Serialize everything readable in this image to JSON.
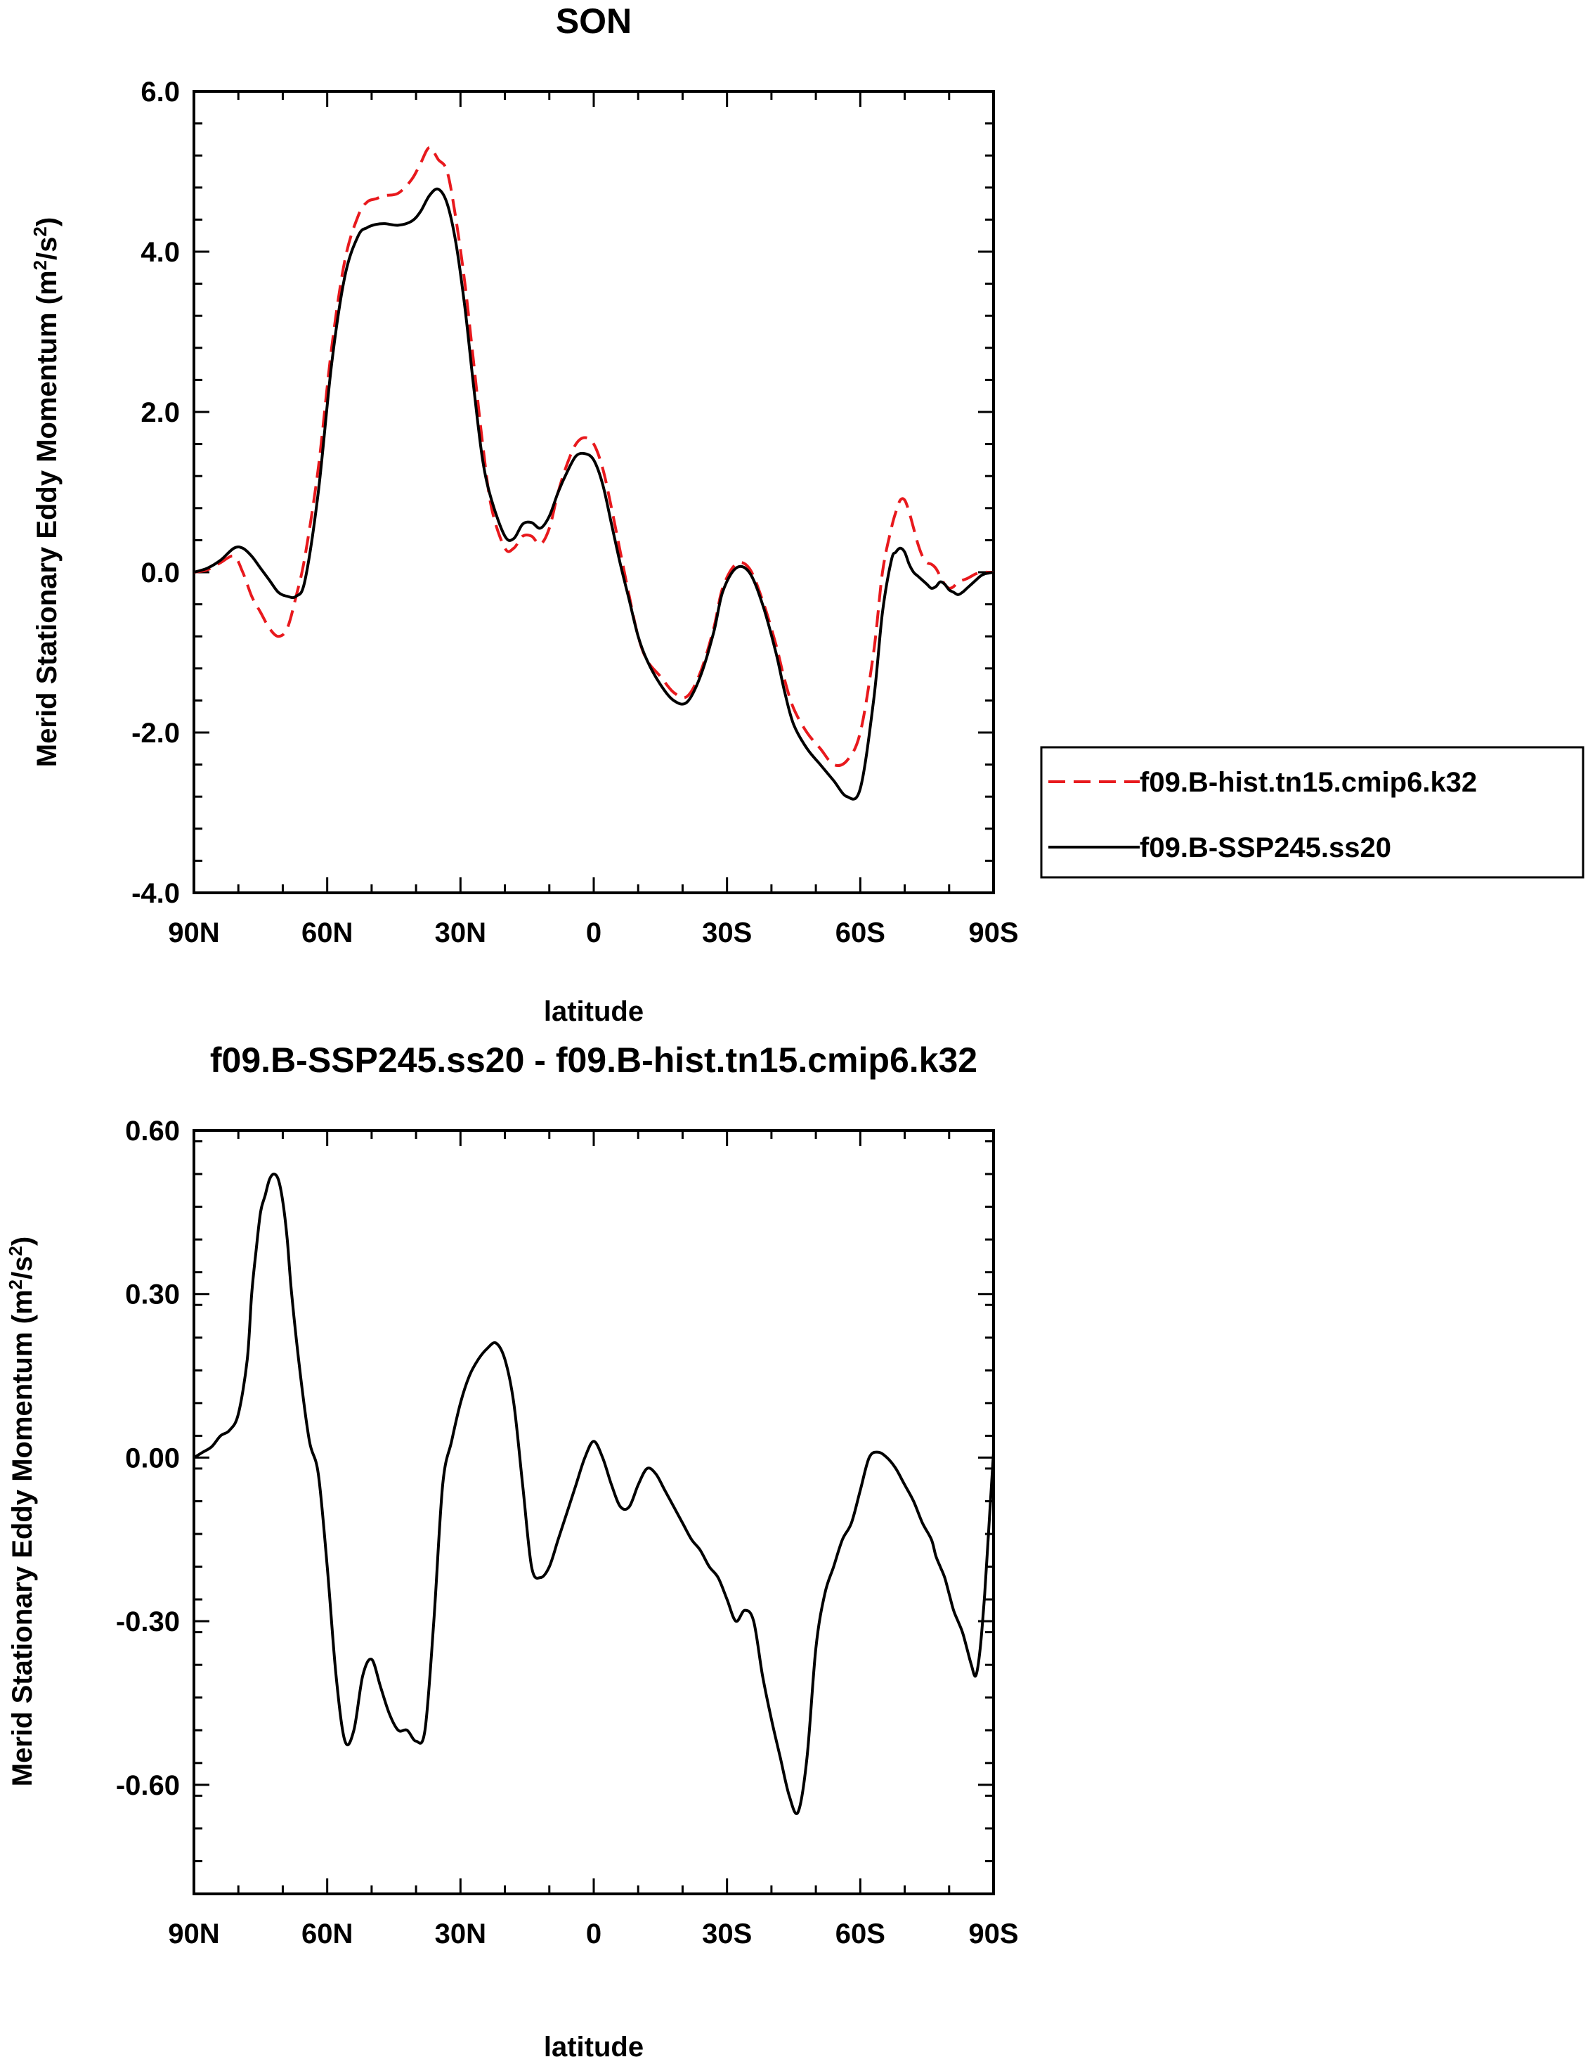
{
  "chart_data": [
    {
      "type": "line",
      "title": "SON",
      "xlabel": "latitude",
      "ylabel": "Merid Stationary Eddy Momentum (m²/s²)",
      "ylabel_parts": [
        "Merid Stationary Eddy Momentum (m",
        "2",
        "/s",
        "2",
        ")"
      ],
      "xlim": [
        90,
        -90
      ],
      "ylim": [
        -4.0,
        6.0
      ],
      "xticks": [
        90,
        60,
        30,
        0,
        -30,
        -60,
        -90
      ],
      "xticklabels": [
        "90N",
        "60N",
        "30N",
        "0",
        "30S",
        "60S",
        "90S"
      ],
      "yticks": [
        -4.0,
        -2.0,
        0.0,
        2.0,
        4.0,
        6.0
      ],
      "yticklabels": [
        "-4.0",
        "-2.0",
        "0.0",
        "2.0",
        "4.0",
        "6.0"
      ],
      "legend_position": "right",
      "series": [
        {
          "name": "f09.B-hist.tn15.cmip6.k32",
          "color": "#e8191d",
          "dash": "dashed",
          "x": [
            90,
            87,
            84,
            81,
            79,
            77,
            75,
            73,
            71,
            69,
            67,
            65,
            62,
            59,
            56,
            53,
            51,
            49,
            47,
            44,
            41,
            39,
            37,
            35,
            33,
            31,
            29,
            27,
            25,
            23,
            20,
            18,
            16,
            14,
            12,
            10,
            8,
            6,
            4,
            2,
            0,
            -2,
            -4,
            -6,
            -8,
            -10,
            -12,
            -15,
            -18,
            -21,
            -24,
            -27,
            -29,
            -32,
            -35,
            -38,
            -41,
            -43,
            -45,
            -48,
            -51,
            -54,
            -57,
            -60,
            -63,
            -65,
            -67,
            -68,
            -69,
            -70,
            -71,
            -72,
            -73,
            -74,
            -75,
            -76,
            -77,
            -78,
            -79,
            -80,
            -81,
            -82,
            -83,
            -84,
            -85,
            -86,
            -87,
            -88,
            -89,
            -90
          ],
          "y": [
            0.0,
            0.03,
            0.12,
            0.2,
            0.0,
            -0.3,
            -0.5,
            -0.7,
            -0.8,
            -0.7,
            -0.3,
            0.2,
            1.3,
            2.8,
            3.9,
            4.45,
            4.62,
            4.66,
            4.7,
            4.73,
            4.9,
            5.1,
            5.3,
            5.15,
            5.0,
            4.4,
            3.6,
            2.6,
            1.6,
            0.8,
            0.3,
            0.3,
            0.45,
            0.45,
            0.35,
            0.55,
            1.0,
            1.35,
            1.6,
            1.68,
            1.6,
            1.3,
            0.8,
            0.25,
            -0.3,
            -0.8,
            -1.1,
            -1.3,
            -1.5,
            -1.55,
            -1.25,
            -0.7,
            -0.2,
            0.1,
            0.05,
            -0.35,
            -0.9,
            -1.35,
            -1.7,
            -2.0,
            -2.2,
            -2.4,
            -2.35,
            -2.0,
            -1.0,
            0.0,
            0.55,
            0.75,
            0.9,
            0.9,
            0.75,
            0.55,
            0.35,
            0.2,
            0.12,
            0.1,
            0.05,
            -0.05,
            -0.15,
            -0.2,
            -0.18,
            -0.12,
            -0.1,
            -0.08,
            -0.05,
            -0.02,
            -0.01,
            0.0,
            0.0,
            0.0
          ]
        },
        {
          "name": "f09.B-SSP245.ss20",
          "color": "#000000",
          "dash": "solid",
          "x": [
            90,
            87,
            84,
            81,
            79,
            77,
            75,
            73,
            71,
            69,
            67,
            65,
            62,
            59,
            56,
            53,
            51,
            49,
            47,
            44,
            41,
            39,
            37,
            35,
            33,
            31,
            29,
            27,
            25,
            23,
            20,
            18,
            16,
            14,
            12,
            10,
            8,
            6,
            4,
            2,
            0,
            -2,
            -4,
            -6,
            -8,
            -10,
            -12,
            -15,
            -18,
            -21,
            -24,
            -27,
            -29,
            -32,
            -35,
            -38,
            -41,
            -43,
            -45,
            -48,
            -51,
            -54,
            -57,
            -60,
            -63,
            -65,
            -67,
            -68,
            -69,
            -70,
            -71,
            -72,
            -73,
            -74,
            -75,
            -76,
            -77,
            -78,
            -79,
            -80,
            -81,
            -82,
            -83,
            -84,
            -85,
            -86,
            -87,
            -88,
            -89,
            -90
          ],
          "y": [
            0.0,
            0.05,
            0.15,
            0.3,
            0.3,
            0.2,
            0.05,
            -0.1,
            -0.25,
            -0.3,
            -0.3,
            -0.1,
            1.0,
            2.6,
            3.7,
            4.2,
            4.3,
            4.34,
            4.35,
            4.33,
            4.38,
            4.5,
            4.7,
            4.78,
            4.6,
            4.1,
            3.3,
            2.3,
            1.4,
            0.9,
            0.45,
            0.42,
            0.6,
            0.62,
            0.55,
            0.7,
            1.0,
            1.25,
            1.45,
            1.48,
            1.4,
            1.1,
            0.6,
            0.1,
            -0.35,
            -0.8,
            -1.1,
            -1.4,
            -1.6,
            -1.62,
            -1.3,
            -0.75,
            -0.25,
            0.05,
            0.0,
            -0.4,
            -1.0,
            -1.5,
            -1.9,
            -2.2,
            -2.4,
            -2.6,
            -2.8,
            -2.7,
            -1.6,
            -0.5,
            0.15,
            0.25,
            0.3,
            0.25,
            0.1,
            0.0,
            -0.05,
            -0.1,
            -0.15,
            -0.2,
            -0.18,
            -0.12,
            -0.15,
            -0.22,
            -0.25,
            -0.28,
            -0.25,
            -0.2,
            -0.15,
            -0.1,
            -0.05,
            -0.02,
            -0.01,
            0.0
          ]
        }
      ]
    },
    {
      "type": "line",
      "title": "f09.B-SSP245.ss20 - f09.B-hist.tn15.cmip6.k32",
      "xlabel": "latitude",
      "ylabel": "Merid Stationary Eddy Momentum (m²/s²)",
      "ylabel_parts": [
        "Merid Stationary Eddy Momentum (m",
        "2",
        "/s",
        "2",
        ")"
      ],
      "xlim": [
        90,
        -90
      ],
      "ylim": [
        -0.8,
        0.6
      ],
      "xticks": [
        90,
        60,
        30,
        0,
        -30,
        -60,
        -90
      ],
      "xticklabels": [
        "90N",
        "60N",
        "30N",
        "0",
        "30S",
        "60S",
        "90S"
      ],
      "yticks": [
        -0.6,
        -0.3,
        0.0,
        0.3,
        0.6
      ],
      "yticklabels": [
        "-0.60",
        "-0.30",
        "0.00",
        "0.30",
        "0.60"
      ],
      "series": [
        {
          "name": "f09.B-SSP245.ss20 - f09.B-hist.tn15.cmip6.k32",
          "color": "#000000",
          "dash": "solid",
          "x": [
            90,
            88,
            86,
            84,
            82,
            80,
            78,
            77,
            76,
            75,
            74,
            73,
            72,
            71,
            70,
            69,
            68,
            66,
            64,
            62,
            60,
            58,
            56,
            54,
            52,
            50,
            48,
            46,
            44,
            42,
            40,
            38,
            36,
            34,
            32,
            30,
            28,
            26,
            24,
            22,
            20,
            18,
            16,
            14,
            12,
            10,
            8,
            6,
            4,
            2,
            0,
            -2,
            -4,
            -6,
            -8,
            -10,
            -12,
            -14,
            -16,
            -18,
            -20,
            -22,
            -24,
            -26,
            -28,
            -30,
            -32,
            -34,
            -36,
            -38,
            -40,
            -42,
            -44,
            -46,
            -48,
            -50,
            -52,
            -54,
            -56,
            -58,
            -60,
            -62,
            -64,
            -66,
            -68,
            -70,
            -72,
            -74,
            -76,
            -77,
            -78,
            -79,
            -80,
            -81,
            -82,
            -83,
            -84,
            -85,
            -86,
            -87,
            -88,
            -89,
            -90
          ],
          "y": [
            0.0,
            0.01,
            0.02,
            0.04,
            0.05,
            0.08,
            0.18,
            0.3,
            0.38,
            0.45,
            0.48,
            0.51,
            0.52,
            0.51,
            0.47,
            0.4,
            0.3,
            0.15,
            0.03,
            -0.03,
            -0.2,
            -0.4,
            -0.52,
            -0.5,
            -0.4,
            -0.37,
            -0.42,
            -0.47,
            -0.5,
            -0.5,
            -0.52,
            -0.5,
            -0.3,
            -0.05,
            0.03,
            0.1,
            0.15,
            0.18,
            0.2,
            0.21,
            0.18,
            0.1,
            -0.05,
            -0.2,
            -0.22,
            -0.2,
            -0.15,
            -0.1,
            -0.05,
            0.0,
            0.03,
            0.0,
            -0.05,
            -0.09,
            -0.09,
            -0.05,
            -0.02,
            -0.03,
            -0.06,
            -0.09,
            -0.12,
            -0.15,
            -0.17,
            -0.2,
            -0.22,
            -0.26,
            -0.3,
            -0.28,
            -0.3,
            -0.4,
            -0.48,
            -0.55,
            -0.62,
            -0.65,
            -0.55,
            -0.35,
            -0.25,
            -0.2,
            -0.15,
            -0.12,
            -0.06,
            0.0,
            0.01,
            0.0,
            -0.02,
            -0.05,
            -0.08,
            -0.12,
            -0.15,
            -0.18,
            -0.2,
            -0.22,
            -0.25,
            -0.28,
            -0.3,
            -0.32,
            -0.35,
            -0.38,
            -0.4,
            -0.35,
            -0.25,
            -0.12,
            0.01
          ]
        }
      ]
    }
  ]
}
